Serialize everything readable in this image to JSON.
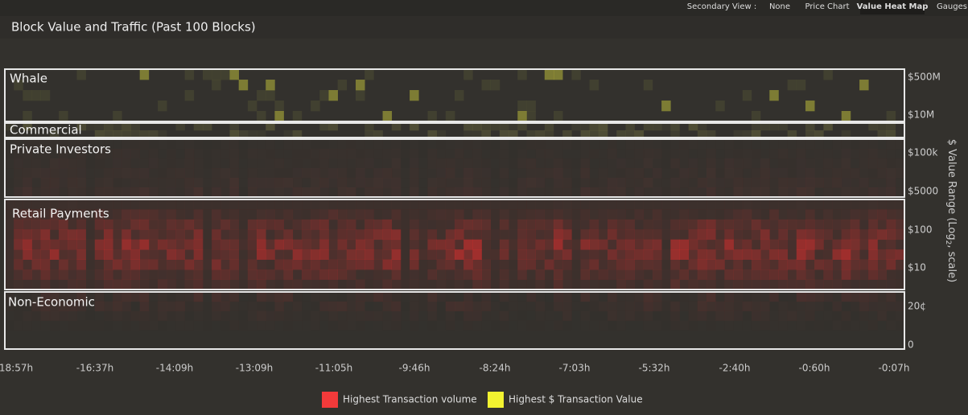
{
  "nav": {
    "label": "Secondary View :",
    "options": [
      "None",
      "Price Chart",
      "Value Heat Map",
      "Gauges"
    ],
    "active": 2
  },
  "title": "Block Value and Traffic (Past 100 Blocks)",
  "bands": [
    "Whale",
    "Commercial",
    "Private Investors",
    "Retail Payments",
    "Non-Economic"
  ],
  "y_axis": {
    "title": "$ Value Range (Log",
    "title_sub": "2",
    "title_end": ", scale)",
    "labels": [
      "$500M",
      "$10M",
      "$100k",
      "$5000",
      "$100",
      "$10",
      "20¢",
      "0"
    ]
  },
  "x_axis": {
    "labels": [
      "18:57h",
      "-16:37h",
      "-14:09h",
      "-13:09h",
      "-11:05h",
      "-9:46h",
      "-8:24h",
      "-7:03h",
      "-5:32h",
      "-2:40h",
      "-0:60h",
      "-0:07h"
    ]
  },
  "legend": [
    {
      "label": "Highest Transaction volume",
      "color": "#f23a3a"
    },
    {
      "label": "Highest $ Transaction Value",
      "color": "#f2f230"
    }
  ]
}
